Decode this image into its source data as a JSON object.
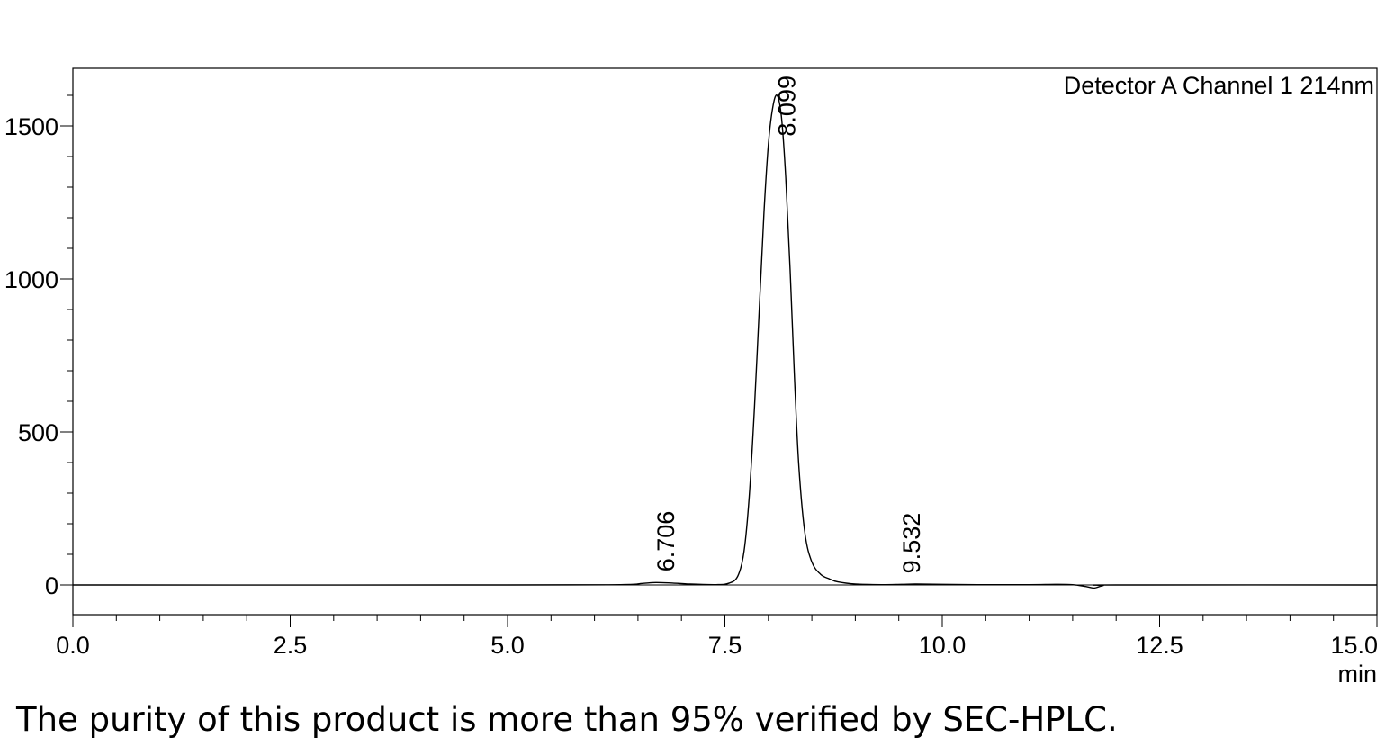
{
  "caption": "The purity of this product is more than 95% verified by SEC-HPLC.",
  "chart_data": {
    "type": "line",
    "detector_label": "Detector A Channel 1 214nm",
    "xlabel": "min",
    "ylabel": "",
    "xlim": [
      0,
      15
    ],
    "ylim": [
      -100,
      1680
    ],
    "x_ticks": [
      0,
      2.5,
      5,
      7.5,
      10,
      12.5,
      15
    ],
    "x_tick_labels": [
      "0.0",
      "2.5",
      "5.0",
      "7.5",
      "10.0",
      "12.5",
      "15.0"
    ],
    "y_ticks": [
      0,
      500,
      1000,
      1500
    ],
    "y_tick_labels": [
      "0",
      "500",
      "1000",
      "1500"
    ],
    "grid": false,
    "series": [
      {
        "x": [
          0,
          5.0,
          6.3,
          6.55,
          6.706,
          6.9,
          7.1,
          7.4,
          7.55,
          7.65,
          7.72,
          7.78,
          7.84,
          7.9,
          7.95,
          8.0,
          8.05,
          8.099,
          8.15,
          8.2,
          8.25,
          8.3,
          8.35,
          8.42,
          8.5,
          8.6,
          8.7,
          8.8,
          9.0,
          9.3,
          9.532,
          9.7,
          10.0,
          10.4,
          11.0,
          11.3,
          11.5,
          11.65,
          11.75,
          11.85,
          12.0,
          15.0
        ],
        "y": [
          0,
          0,
          1,
          5,
          8,
          6,
          3,
          1,
          6,
          30,
          110,
          290,
          580,
          930,
          1220,
          1440,
          1560,
          1600,
          1530,
          1330,
          1030,
          680,
          390,
          170,
          75,
          35,
          20,
          10,
          3,
          1,
          2,
          3,
          2,
          1,
          1,
          2,
          1,
          -5,
          -10,
          -2,
          0,
          0
        ]
      }
    ],
    "peaks": [
      {
        "rt": 6.706,
        "label": "6.706",
        "height": 8
      },
      {
        "rt": 8.099,
        "label": "8.099",
        "height": 1600
      },
      {
        "rt": 9.532,
        "label": "9.532",
        "height": 2
      }
    ]
  }
}
